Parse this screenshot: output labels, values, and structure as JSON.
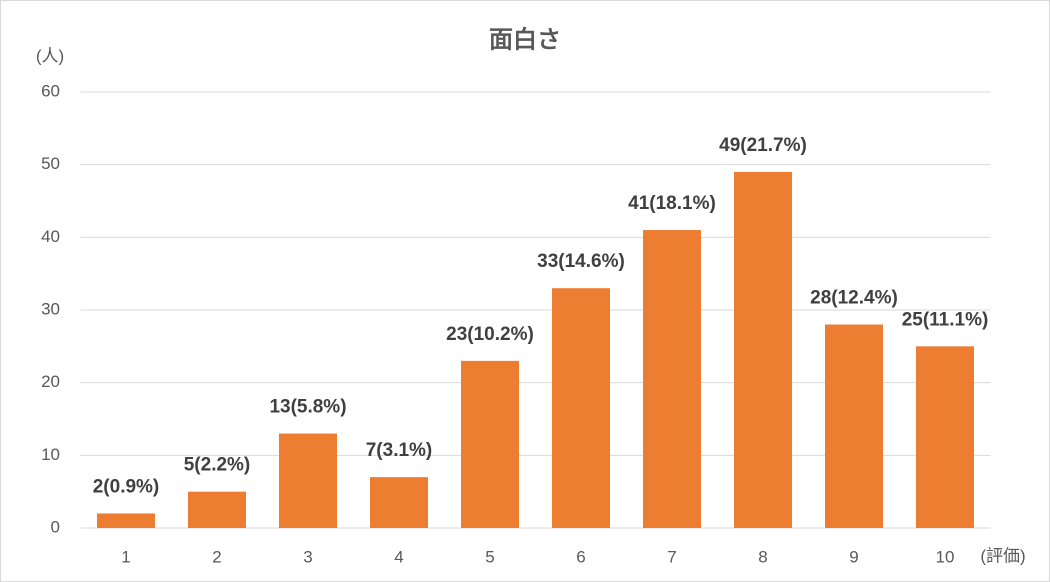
{
  "chart_data": {
    "type": "bar",
    "title": "面白さ",
    "y_label": "(人)",
    "x_label": "(評価)",
    "categories": [
      "1",
      "2",
      "3",
      "4",
      "5",
      "6",
      "7",
      "8",
      "9",
      "10"
    ],
    "values": [
      2,
      5,
      13,
      7,
      23,
      33,
      41,
      49,
      28,
      25
    ],
    "value_labels": [
      "2(0.9%)",
      "5(2.2%)",
      "13(5.8%)",
      "7(3.1%)",
      "23(10.2%)",
      "33(14.6%)",
      "41(18.1%)",
      "49(21.7%)",
      "28(12.4%)",
      "25(11.1%)"
    ],
    "color": "#ed7d31",
    "ylim": [
      0,
      60
    ],
    "yticks": [
      0,
      10,
      20,
      30,
      40,
      50,
      60
    ],
    "grid": true
  }
}
